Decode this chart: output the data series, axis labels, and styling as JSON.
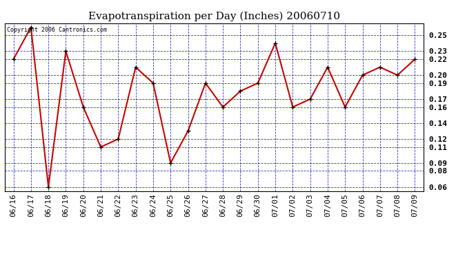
{
  "title": "Evapotranspiration per Day (Inches) 20060710",
  "copyright_text": "Copyright 2006 Cantronics.com",
  "dates": [
    "06/16",
    "06/17",
    "06/18",
    "06/19",
    "06/20",
    "06/21",
    "06/22",
    "06/23",
    "06/24",
    "06/25",
    "06/26",
    "06/27",
    "06/28",
    "06/29",
    "06/30",
    "07/01",
    "07/02",
    "07/03",
    "07/04",
    "07/05",
    "07/06",
    "07/07",
    "07/08",
    "07/09"
  ],
  "values": [
    0.22,
    0.26,
    0.06,
    0.23,
    0.16,
    0.11,
    0.12,
    0.21,
    0.19,
    0.09,
    0.13,
    0.19,
    0.16,
    0.18,
    0.19,
    0.24,
    0.16,
    0.17,
    0.21,
    0.16,
    0.2,
    0.21,
    0.2,
    0.22
  ],
  "yticks": [
    0.06,
    0.08,
    0.09,
    0.11,
    0.12,
    0.14,
    0.16,
    0.17,
    0.19,
    0.2,
    0.22,
    0.23,
    0.25
  ],
  "ylim": [
    0.055,
    0.265
  ],
  "line_color": "#cc0000",
  "marker_color": "#000000",
  "background_color": "#ffffff",
  "plot_bg_color": "#ffffff",
  "grid_color": "#0000bb",
  "title_fontsize": 11,
  "tick_fontsize": 8
}
